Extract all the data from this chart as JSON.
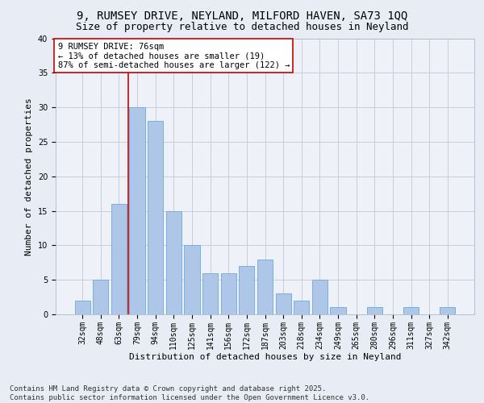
{
  "title_line1": "9, RUMSEY DRIVE, NEYLAND, MILFORD HAVEN, SA73 1QQ",
  "title_line2": "Size of property relative to detached houses in Neyland",
  "xlabel": "Distribution of detached houses by size in Neyland",
  "ylabel": "Number of detached properties",
  "categories": [
    "32sqm",
    "48sqm",
    "63sqm",
    "79sqm",
    "94sqm",
    "110sqm",
    "125sqm",
    "141sqm",
    "156sqm",
    "172sqm",
    "187sqm",
    "203sqm",
    "218sqm",
    "234sqm",
    "249sqm",
    "265sqm",
    "280sqm",
    "296sqm",
    "311sqm",
    "327sqm",
    "342sqm"
  ],
  "values": [
    2,
    5,
    16,
    30,
    28,
    15,
    10,
    6,
    6,
    7,
    8,
    3,
    2,
    5,
    1,
    0,
    1,
    0,
    1,
    0,
    1
  ],
  "bar_color": "#aec6e8",
  "bar_edge_color": "#6ea8d8",
  "vline_index": 3,
  "vline_color": "#cc0000",
  "annotation_text": "9 RUMSEY DRIVE: 76sqm\n← 13% of detached houses are smaller (19)\n87% of semi-detached houses are larger (122) →",
  "annotation_box_color": "#ffffff",
  "annotation_box_edge": "#cc0000",
  "ylim": [
    0,
    40
  ],
  "yticks": [
    0,
    5,
    10,
    15,
    20,
    25,
    30,
    35,
    40
  ],
  "bg_color": "#e8edf5",
  "plot_bg_color": "#eef2f8",
  "footer_text": "Contains HM Land Registry data © Crown copyright and database right 2025.\nContains public sector information licensed under the Open Government Licence v3.0.",
  "title_fontsize": 10,
  "subtitle_fontsize": 9,
  "axis_label_fontsize": 8,
  "tick_fontsize": 7,
  "annotation_fontsize": 7.5,
  "footer_fontsize": 6.5
}
